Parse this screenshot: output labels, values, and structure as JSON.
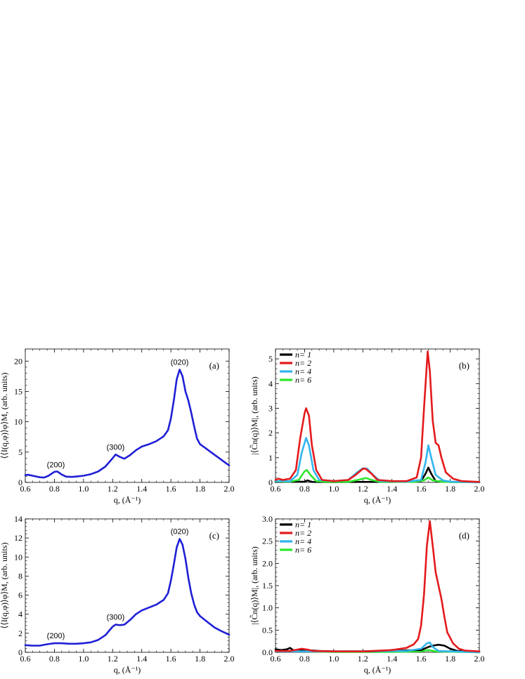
{
  "colors": {
    "blue": "#1f1fd6",
    "black": "#000000",
    "red": "#e41a1c",
    "lightblue": "#33b5ee",
    "green": "#2ee62e"
  },
  "chart_data": [
    {
      "id": "a",
      "type": "line",
      "panel_label": "(a)",
      "xlabel": "q, (Å⁻¹)",
      "ylabel": "⟨⟨I(q,φ)⟩φ⟩M, (arb. units)",
      "xlim": [
        0.6,
        2.0
      ],
      "ylim": [
        0,
        22
      ],
      "xticks": [
        0.6,
        0.8,
        1.0,
        1.2,
        1.4,
        1.6,
        1.8,
        2.0
      ],
      "yticks": [
        0,
        5,
        10,
        15,
        20
      ],
      "annotations": [
        {
          "text": "(200)",
          "x": 0.81,
          "y": 1.7
        },
        {
          "text": "(300)",
          "x": 1.22,
          "y": 4.6
        },
        {
          "text": "(020)",
          "x": 1.66,
          "y": 18.6
        }
      ],
      "series": [
        {
          "color": "blue",
          "points": [
            [
              0.6,
              1.2
            ],
            [
              0.62,
              1.25
            ],
            [
              0.65,
              1.1
            ],
            [
              0.7,
              0.85
            ],
            [
              0.73,
              0.8
            ],
            [
              0.76,
              1.1
            ],
            [
              0.8,
              1.75
            ],
            [
              0.82,
              1.8
            ],
            [
              0.85,
              1.3
            ],
            [
              0.88,
              0.95
            ],
            [
              0.92,
              0.9
            ],
            [
              0.96,
              1.0
            ],
            [
              1.0,
              1.1
            ],
            [
              1.05,
              1.35
            ],
            [
              1.1,
              1.8
            ],
            [
              1.15,
              2.6
            ],
            [
              1.2,
              4.0
            ],
            [
              1.22,
              4.6
            ],
            [
              1.25,
              4.2
            ],
            [
              1.28,
              3.9
            ],
            [
              1.32,
              4.5
            ],
            [
              1.36,
              5.3
            ],
            [
              1.4,
              5.9
            ],
            [
              1.45,
              6.3
            ],
            [
              1.5,
              6.8
            ],
            [
              1.55,
              7.6
            ],
            [
              1.58,
              8.6
            ],
            [
              1.6,
              10.5
            ],
            [
              1.62,
              13.5
            ],
            [
              1.64,
              17.0
            ],
            [
              1.66,
              18.6
            ],
            [
              1.68,
              17.5
            ],
            [
              1.7,
              15.0
            ],
            [
              1.72,
              13.5
            ],
            [
              1.74,
              11.5
            ],
            [
              1.76,
              9.2
            ],
            [
              1.78,
              7.2
            ],
            [
              1.8,
              6.3
            ],
            [
              1.84,
              5.6
            ],
            [
              1.88,
              4.9
            ],
            [
              1.92,
              4.2
            ],
            [
              1.96,
              3.5
            ],
            [
              2.0,
              2.8
            ]
          ]
        }
      ]
    },
    {
      "id": "b",
      "type": "line",
      "panel_label": "(b)",
      "xlabel": "q, (Å⁻¹)",
      "ylabel": "|⟨C̃n(q)⟩M|, (arb. units)",
      "xlim": [
        0.6,
        2.0
      ],
      "ylim": [
        0,
        5.4
      ],
      "xticks": [
        0.6,
        0.8,
        1.0,
        1.2,
        1.4,
        1.6,
        1.8,
        2.0
      ],
      "yticks": [
        0,
        1,
        2,
        3,
        4,
        5
      ],
      "legend": [
        {
          "label": "n= 1",
          "color": "black"
        },
        {
          "label": "n= 2",
          "color": "red"
        },
        {
          "label": "n= 4",
          "color": "lightblue"
        },
        {
          "label": "n= 6",
          "color": "green"
        }
      ],
      "series": [
        {
          "color": "black",
          "points": [
            [
              0.6,
              0.02
            ],
            [
              0.8,
              0.03
            ],
            [
              0.82,
              0.08
            ],
            [
              0.85,
              0.02
            ],
            [
              1.0,
              0.01
            ],
            [
              1.2,
              0.02
            ],
            [
              1.4,
              0.02
            ],
            [
              1.6,
              0.05
            ],
            [
              1.63,
              0.35
            ],
            [
              1.65,
              0.6
            ],
            [
              1.67,
              0.35
            ],
            [
              1.7,
              0.05
            ],
            [
              1.8,
              0.02
            ],
            [
              2.0,
              0.01
            ]
          ]
        },
        {
          "color": "green",
          "points": [
            [
              0.6,
              0.04
            ],
            [
              0.7,
              0.03
            ],
            [
              0.76,
              0.1
            ],
            [
              0.8,
              0.45
            ],
            [
              0.815,
              0.5
            ],
            [
              0.84,
              0.3
            ],
            [
              0.88,
              0.05
            ],
            [
              0.95,
              0.02
            ],
            [
              1.1,
              0.02
            ],
            [
              1.18,
              0.12
            ],
            [
              1.22,
              0.18
            ],
            [
              1.26,
              0.1
            ],
            [
              1.32,
              0.02
            ],
            [
              1.55,
              0.02
            ],
            [
              1.62,
              0.08
            ],
            [
              1.65,
              0.2
            ],
            [
              1.68,
              0.08
            ],
            [
              1.75,
              0.02
            ],
            [
              2.0,
              0.0
            ]
          ]
        },
        {
          "color": "lightblue",
          "points": [
            [
              0.6,
              0.05
            ],
            [
              0.7,
              0.05
            ],
            [
              0.75,
              0.3
            ],
            [
              0.78,
              1.2
            ],
            [
              0.81,
              1.8
            ],
            [
              0.83,
              1.5
            ],
            [
              0.86,
              0.5
            ],
            [
              0.9,
              0.1
            ],
            [
              1.0,
              0.05
            ],
            [
              1.1,
              0.1
            ],
            [
              1.16,
              0.4
            ],
            [
              1.2,
              0.57
            ],
            [
              1.23,
              0.55
            ],
            [
              1.27,
              0.3
            ],
            [
              1.32,
              0.05
            ],
            [
              1.5,
              0.03
            ],
            [
              1.6,
              0.1
            ],
            [
              1.63,
              0.8
            ],
            [
              1.65,
              1.5
            ],
            [
              1.67,
              1.0
            ],
            [
              1.7,
              0.3
            ],
            [
              1.75,
              0.08
            ],
            [
              1.8,
              0.03
            ],
            [
              2.0,
              0.0
            ]
          ]
        },
        {
          "color": "red",
          "points": [
            [
              0.6,
              0.1
            ],
            [
              0.62,
              0.15
            ],
            [
              0.65,
              0.1
            ],
            [
              0.7,
              0.15
            ],
            [
              0.74,
              0.5
            ],
            [
              0.77,
              1.8
            ],
            [
              0.8,
              2.8
            ],
            [
              0.81,
              3.0
            ],
            [
              0.83,
              2.7
            ],
            [
              0.85,
              1.5
            ],
            [
              0.88,
              0.5
            ],
            [
              0.92,
              0.1
            ],
            [
              1.0,
              0.05
            ],
            [
              1.1,
              0.1
            ],
            [
              1.15,
              0.3
            ],
            [
              1.2,
              0.55
            ],
            [
              1.22,
              0.55
            ],
            [
              1.26,
              0.35
            ],
            [
              1.3,
              0.1
            ],
            [
              1.4,
              0.05
            ],
            [
              1.5,
              0.05
            ],
            [
              1.57,
              0.2
            ],
            [
              1.6,
              1.0
            ],
            [
              1.62,
              3.0
            ],
            [
              1.645,
              5.3
            ],
            [
              1.66,
              4.5
            ],
            [
              1.68,
              2.5
            ],
            [
              1.7,
              1.6
            ],
            [
              1.72,
              1.5
            ],
            [
              1.74,
              1.0
            ],
            [
              1.77,
              0.4
            ],
            [
              1.82,
              0.15
            ],
            [
              1.88,
              0.05
            ],
            [
              2.0,
              0.02
            ]
          ]
        }
      ]
    },
    {
      "id": "c",
      "type": "line",
      "panel_label": "(c)",
      "xlabel": "q, (Å⁻¹)",
      "ylabel": "⟨⟨I(q,φ)⟩φ⟩M, (arb. units)",
      "xlim": [
        0.6,
        2.0
      ],
      "ylim": [
        0,
        14
      ],
      "xticks": [
        0.6,
        0.8,
        1.0,
        1.2,
        1.4,
        1.6,
        1.8,
        2.0
      ],
      "yticks": [
        0,
        2,
        4,
        6,
        8,
        10,
        12,
        14
      ],
      "annotations": [
        {
          "text": "(200)",
          "x": 0.81,
          "y": 0.95
        },
        {
          "text": "(300)",
          "x": 1.22,
          "y": 2.9
        },
        {
          "text": "(020)",
          "x": 1.66,
          "y": 11.9
        }
      ],
      "series": [
        {
          "color": "blue",
          "points": [
            [
              0.6,
              0.75
            ],
            [
              0.65,
              0.7
            ],
            [
              0.7,
              0.7
            ],
            [
              0.75,
              0.85
            ],
            [
              0.8,
              0.95
            ],
            [
              0.85,
              0.95
            ],
            [
              0.9,
              0.9
            ],
            [
              0.95,
              0.9
            ],
            [
              1.0,
              0.95
            ],
            [
              1.05,
              1.05
            ],
            [
              1.1,
              1.3
            ],
            [
              1.15,
              1.8
            ],
            [
              1.2,
              2.7
            ],
            [
              1.22,
              2.9
            ],
            [
              1.25,
              2.85
            ],
            [
              1.28,
              2.9
            ],
            [
              1.32,
              3.4
            ],
            [
              1.36,
              4.0
            ],
            [
              1.4,
              4.4
            ],
            [
              1.45,
              4.7
            ],
            [
              1.5,
              5.0
            ],
            [
              1.55,
              5.5
            ],
            [
              1.58,
              6.2
            ],
            [
              1.6,
              7.5
            ],
            [
              1.62,
              9.2
            ],
            [
              1.64,
              11.0
            ],
            [
              1.66,
              11.9
            ],
            [
              1.68,
              11.3
            ],
            [
              1.7,
              9.8
            ],
            [
              1.72,
              7.8
            ],
            [
              1.74,
              6.2
            ],
            [
              1.76,
              5.0
            ],
            [
              1.78,
              4.2
            ],
            [
              1.8,
              3.8
            ],
            [
              1.85,
              3.2
            ],
            [
              1.9,
              2.6
            ],
            [
              1.95,
              2.2
            ],
            [
              2.0,
              1.85
            ]
          ]
        }
      ]
    },
    {
      "id": "d",
      "type": "line",
      "panel_label": "(d)",
      "xlabel": "q, (Å⁻¹)",
      "ylabel": "|⟨C̃n(q)⟩M|, (arb. units)",
      "xlim": [
        0.6,
        2.0
      ],
      "ylim": [
        0,
        3.0
      ],
      "xticks": [
        0.6,
        0.8,
        1.0,
        1.2,
        1.4,
        1.6,
        1.8,
        2.0
      ],
      "yticks": [
        0.0,
        0.5,
        1.0,
        1.5,
        2.0,
        2.5,
        3.0
      ],
      "legend": [
        {
          "label": "n= 1",
          "color": "black"
        },
        {
          "label": "n= 2",
          "color": "red"
        },
        {
          "label": "n= 4",
          "color": "lightblue"
        },
        {
          "label": "n= 6",
          "color": "green"
        }
      ],
      "series": [
        {
          "color": "green",
          "points": [
            [
              0.6,
              0.02
            ],
            [
              0.8,
              0.02
            ],
            [
              1.0,
              0.01
            ],
            [
              1.2,
              0.01
            ],
            [
              1.4,
              0.01
            ],
            [
              1.6,
              0.02
            ],
            [
              1.65,
              0.05
            ],
            [
              1.7,
              0.02
            ],
            [
              2.0,
              0.0
            ]
          ]
        },
        {
          "color": "black",
          "points": [
            [
              0.6,
              0.07
            ],
            [
              0.64,
              0.05
            ],
            [
              0.68,
              0.07
            ],
            [
              0.7,
              0.1
            ],
            [
              0.72,
              0.05
            ],
            [
              0.8,
              0.05
            ],
            [
              0.9,
              0.03
            ],
            [
              1.0,
              0.02
            ],
            [
              1.2,
              0.02
            ],
            [
              1.4,
              0.03
            ],
            [
              1.55,
              0.05
            ],
            [
              1.6,
              0.05
            ],
            [
              1.65,
              0.12
            ],
            [
              1.68,
              0.15
            ],
            [
              1.72,
              0.17
            ],
            [
              1.76,
              0.15
            ],
            [
              1.8,
              0.08
            ],
            [
              1.85,
              0.03
            ],
            [
              2.0,
              0.01
            ]
          ]
        },
        {
          "color": "lightblue",
          "points": [
            [
              0.6,
              0.02
            ],
            [
              1.0,
              0.02
            ],
            [
              1.5,
              0.03
            ],
            [
              1.6,
              0.08
            ],
            [
              1.64,
              0.2
            ],
            [
              1.66,
              0.22
            ],
            [
              1.68,
              0.12
            ],
            [
              1.72,
              0.03
            ],
            [
              2.0,
              0.0
            ]
          ]
        },
        {
          "color": "red",
          "points": [
            [
              0.6,
              0.03
            ],
            [
              0.7,
              0.03
            ],
            [
              0.78,
              0.08
            ],
            [
              0.82,
              0.06
            ],
            [
              0.86,
              0.03
            ],
            [
              1.0,
              0.02
            ],
            [
              1.2,
              0.02
            ],
            [
              1.4,
              0.05
            ],
            [
              1.5,
              0.1
            ],
            [
              1.55,
              0.18
            ],
            [
              1.58,
              0.3
            ],
            [
              1.6,
              0.6
            ],
            [
              1.62,
              1.3
            ],
            [
              1.64,
              2.4
            ],
            [
              1.66,
              2.95
            ],
            [
              1.68,
              2.4
            ],
            [
              1.7,
              1.8
            ],
            [
              1.72,
              1.5
            ],
            [
              1.74,
              1.2
            ],
            [
              1.76,
              0.8
            ],
            [
              1.78,
              0.45
            ],
            [
              1.82,
              0.2
            ],
            [
              1.86,
              0.08
            ],
            [
              1.9,
              0.04
            ],
            [
              2.0,
              0.02
            ]
          ]
        }
      ]
    }
  ]
}
